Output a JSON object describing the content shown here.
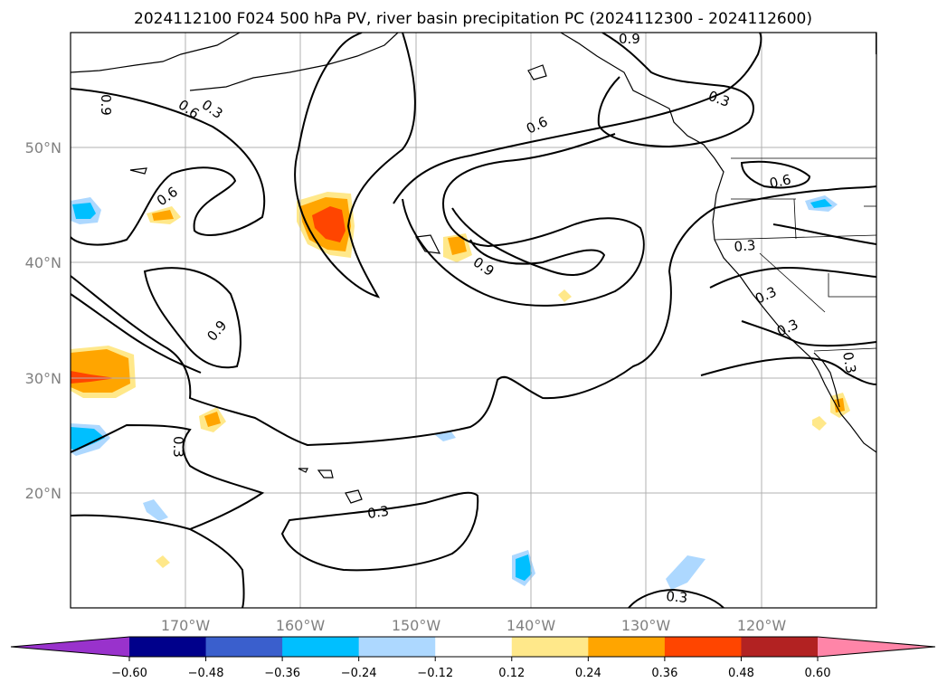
{
  "title": "2024112100 F024 500 hPa PV, river basin precipitation PC (2024112300 - 2024112600)",
  "map": {
    "lon_range": [
      -180,
      -110
    ],
    "lat_range": [
      10,
      60
    ],
    "gridlines": true
  },
  "axes": {
    "lat_labels": [
      "50°N",
      "40°N",
      "30°N",
      "20°N"
    ],
    "lon_labels": [
      "170°W",
      "160°W",
      "150°W",
      "140°W",
      "130°W",
      "120°W"
    ]
  },
  "contour_labels": [
    "0.6",
    "0.3",
    "0.9",
    "0.6",
    "0.9",
    "0.6",
    "0.9",
    "0.3",
    "0.3",
    "0.6",
    "0.3",
    "0.3",
    "0.3",
    "0.3",
    "0.9",
    "0.3",
    "0.3"
  ],
  "colorbar": {
    "extend": "both",
    "colors": [
      "#9932cc",
      "#00008b",
      "#3a5fcd",
      "#00bfff",
      "#add8ff",
      "#ffffff",
      "#ffe88a",
      "#ffa500",
      "#ff4500",
      "#b22222",
      "#ff85a8"
    ],
    "ticks": [
      "−0.60",
      "−0.48",
      "−0.36",
      "−0.24",
      "−0.12",
      "0.12",
      "0.24",
      "0.36",
      "0.48",
      "0.60"
    ]
  },
  "chart_data": {
    "type": "heatmap",
    "title": "2024112100 F024 500 hPa PV, river basin precipitation PC (2024112300 - 2024112600)",
    "contour_field": "500 hPa PV",
    "contour_levels": [
      0.3,
      0.6,
      0.9
    ],
    "fill_field": "river basin precipitation PC",
    "fill_levels": [
      -0.6,
      -0.48,
      -0.36,
      -0.24,
      -0.12,
      0.12,
      0.24,
      0.36,
      0.48,
      0.6
    ],
    "xlim": [
      -180,
      -110
    ],
    "ylim": [
      10,
      60
    ]
  }
}
